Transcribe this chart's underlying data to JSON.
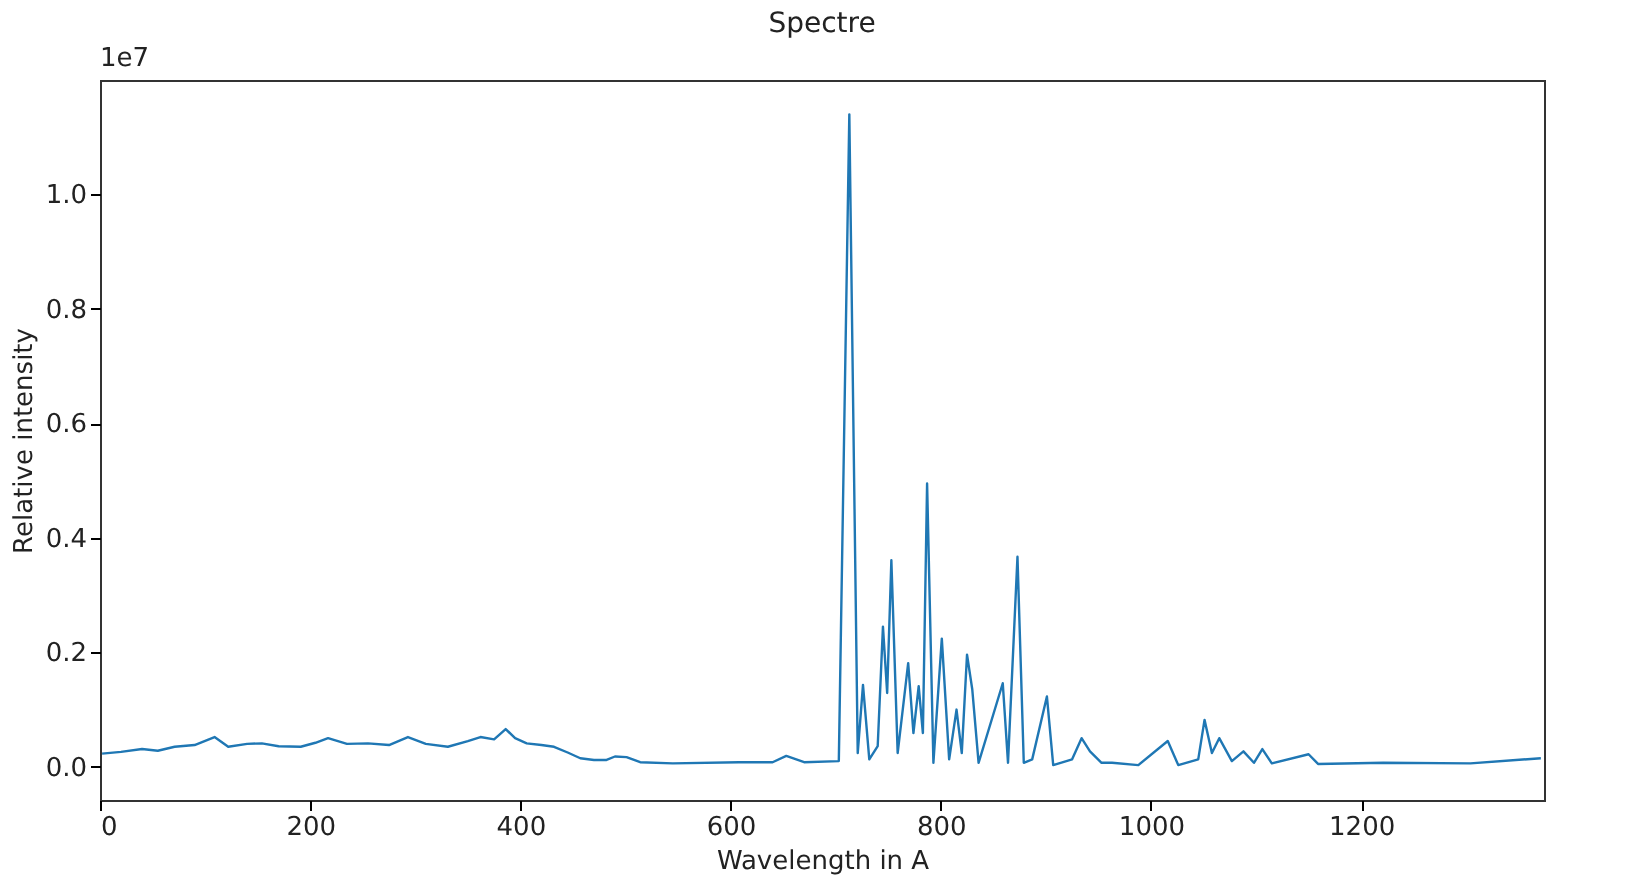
{
  "chart_data": {
    "type": "line",
    "title": "Spectre",
    "xlabel": "Wavelength in A",
    "ylabel": "Relative intensity",
    "annotations": [
      "1e7"
    ],
    "xlim": [
      0,
      1374
    ],
    "ylim": [
      -0.058,
      1.2
    ],
    "xticks": [
      0,
      200,
      400,
      600,
      800,
      1000,
      1200
    ],
    "yticks": [
      {
        "value": 0,
        "label": "0.0"
      },
      {
        "value": 0.2,
        "label": "0.2"
      },
      {
        "value": 0.4,
        "label": "0.4"
      },
      {
        "value": 0.6,
        "label": "0.6"
      },
      {
        "value": 0.8,
        "label": "0.8"
      },
      {
        "value": 1.0,
        "label": "1.0"
      }
    ],
    "grid": false,
    "marker": "none",
    "line_style": "solid",
    "series": [
      {
        "color": "#1f77b4",
        "x": [
          2,
          20,
          40,
          55,
          71,
          90,
          109,
          122,
          140,
          154,
          170,
          191,
          205,
          217,
          235,
          255,
          275,
          293,
          310,
          331,
          350,
          362,
          375,
          386,
          395,
          406,
          420,
          432,
          445,
          457,
          470,
          482,
          490,
          501,
          514,
          545,
          608,
          640,
          653,
          670,
          703,
          713,
          721,
          726,
          732,
          740,
          745,
          749,
          753,
          759,
          769,
          774,
          779,
          783,
          787,
          793,
          801,
          808,
          815,
          820,
          825,
          830,
          836,
          859,
          864,
          873,
          879,
          887,
          901,
          907,
          925,
          934,
          942,
          953,
          963,
          988,
          1016,
          1026,
          1045,
          1051,
          1058,
          1065,
          1077,
          1088,
          1098,
          1106,
          1115,
          1150,
          1159,
          1221,
          1304,
          1371
        ],
        "values": [
          0.023,
          0.026,
          0.031,
          0.028,
          0.035,
          0.038,
          0.052,
          0.035,
          0.04,
          0.041,
          0.036,
          0.035,
          0.042,
          0.05,
          0.04,
          0.041,
          0.038,
          0.052,
          0.04,
          0.035,
          0.045,
          0.052,
          0.048,
          0.066,
          0.05,
          0.041,
          0.038,
          0.035,
          0.025,
          0.015,
          0.012,
          0.012,
          0.018,
          0.017,
          0.008,
          0.006,
          0.008,
          0.008,
          0.019,
          0.008,
          0.01,
          1.14,
          0.024,
          0.143,
          0.013,
          0.036,
          0.245,
          0.129,
          0.361,
          0.024,
          0.181,
          0.059,
          0.141,
          0.059,
          0.495,
          0.007,
          0.224,
          0.013,
          0.1,
          0.024,
          0.196,
          0.135,
          0.007,
          0.146,
          0.007,
          0.367,
          0.007,
          0.013,
          0.123,
          0.003,
          0.013,
          0.05,
          0.027,
          0.007,
          0.007,
          0.003,
          0.045,
          0.003,
          0.013,
          0.082,
          0.024,
          0.05,
          0.01,
          0.027,
          0.007,
          0.031,
          0.006,
          0.022,
          0.005,
          0.007,
          0.006,
          0.015
        ]
      }
    ]
  }
}
